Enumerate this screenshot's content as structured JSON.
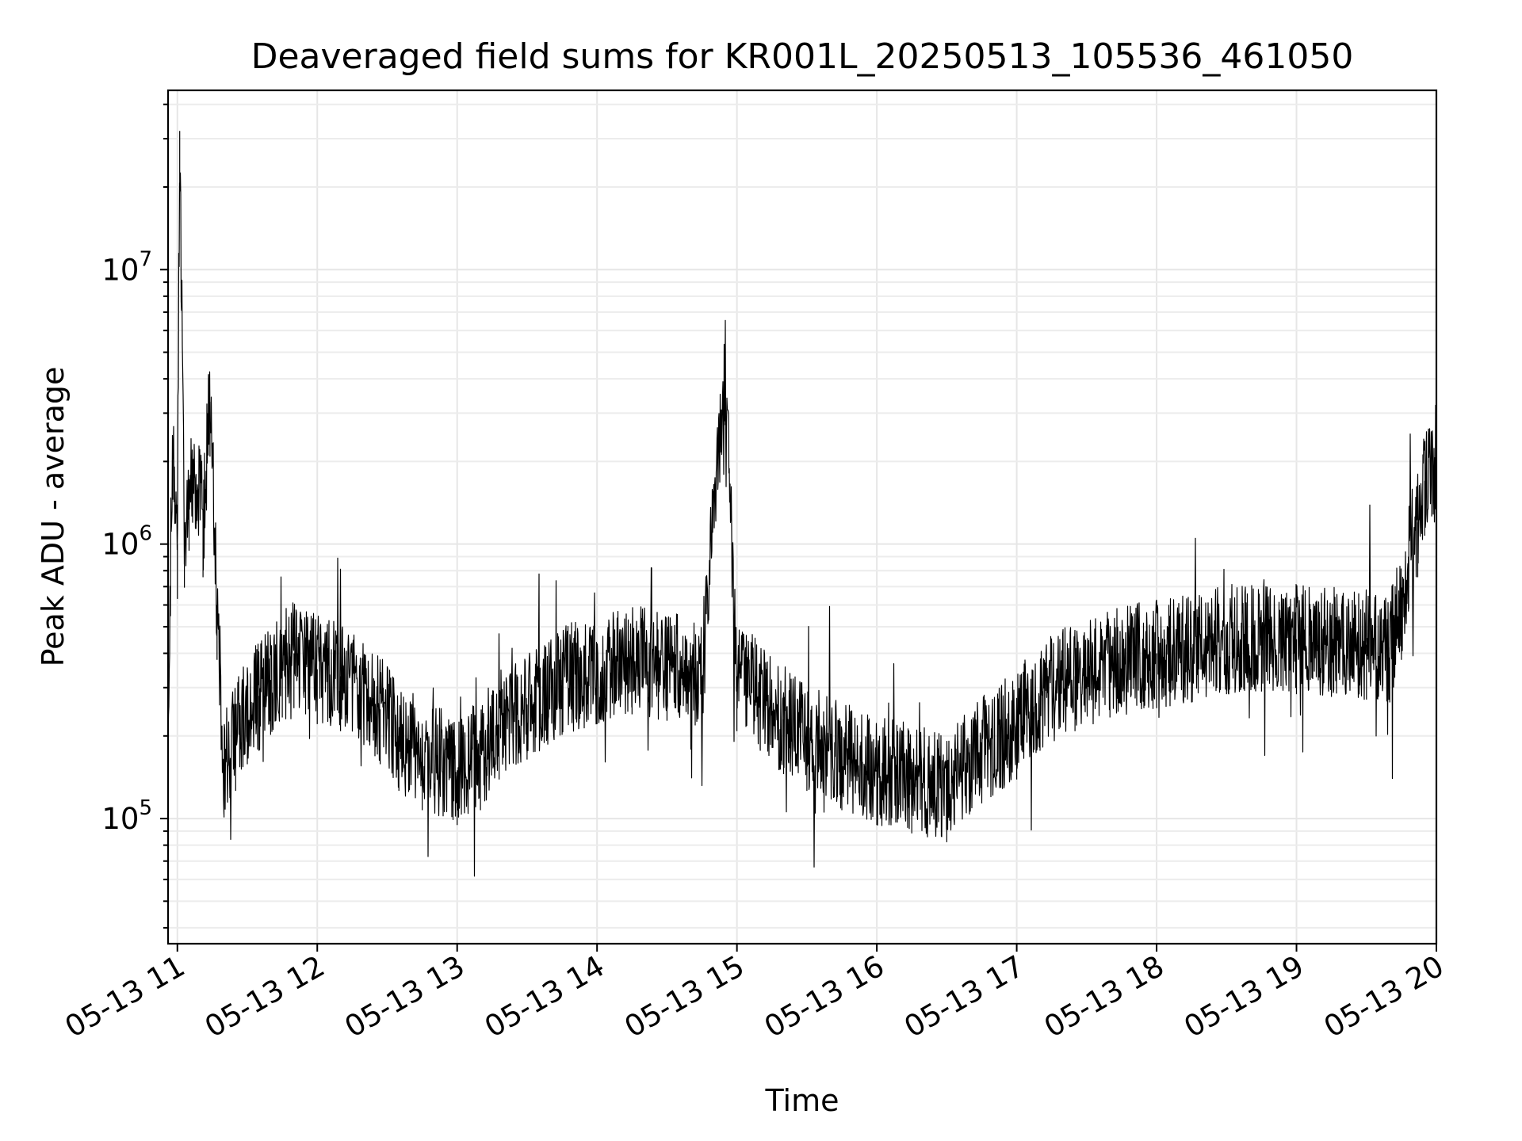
{
  "chart_data": {
    "type": "line",
    "title": "Deaveraged field sums for KR001L_20250513_105536_461050",
    "xlabel": "Time",
    "ylabel": "Peak ADU - average",
    "yscale": "log",
    "xlim": [
      "2025-05-13 10:56",
      "2025-05-13 20:00"
    ],
    "ylim": [
      35000,
      45000000
    ],
    "grid": true,
    "x_tick_labels": [
      "05-13 11",
      "05-13 12",
      "05-13 13",
      "05-13 14",
      "05-13 15",
      "05-13 16",
      "05-13 17",
      "05-13 18",
      "05-13 19",
      "05-13 20"
    ],
    "y_ticks": [
      {
        "base": "10",
        "exp": "5"
      },
      {
        "base": "10",
        "exp": "6"
      },
      {
        "base": "10",
        "exp": "7"
      }
    ],
    "series": [
      {
        "color": "#000000",
        "x": [
          "2025-05-13 10:56",
          "2025-05-13 10:58",
          "2025-05-13 11:00",
          "2025-05-13 11:01",
          "2025-05-13 11:03",
          "2025-05-13 11:05",
          "2025-05-13 11:08",
          "2025-05-13 11:11",
          "2025-05-13 11:14",
          "2025-05-13 11:17",
          "2025-05-13 11:20",
          "2025-05-13 11:25",
          "2025-05-13 11:30",
          "2025-05-13 11:35",
          "2025-05-13 11:40",
          "2025-05-13 11:45",
          "2025-05-13 11:50",
          "2025-05-13 11:55",
          "2025-05-13 12:00",
          "2025-05-13 12:10",
          "2025-05-13 12:20",
          "2025-05-13 12:27",
          "2025-05-13 12:35",
          "2025-05-13 12:45",
          "2025-05-13 13:00",
          "2025-05-13 13:10",
          "2025-05-13 13:18",
          "2025-05-13 13:30",
          "2025-05-13 13:45",
          "2025-05-13 14:00",
          "2025-05-13 14:15",
          "2025-05-13 14:30",
          "2025-05-13 14:45",
          "2025-05-13 14:55",
          "2025-05-13 15:00",
          "2025-05-13 15:10",
          "2025-05-13 15:20",
          "2025-05-13 15:30",
          "2025-05-13 15:45",
          "2025-05-13 16:00",
          "2025-05-13 16:15",
          "2025-05-13 16:30",
          "2025-05-13 16:45",
          "2025-05-13 17:00",
          "2025-05-13 17:10",
          "2025-05-13 17:25",
          "2025-05-13 17:40",
          "2025-05-13 18:00",
          "2025-05-13 18:15",
          "2025-05-13 18:30",
          "2025-05-13 18:45",
          "2025-05-13 19:00",
          "2025-05-13 19:15",
          "2025-05-13 19:30",
          "2025-05-13 19:40",
          "2025-05-13 19:45",
          "2025-05-13 19:48",
          "2025-05-13 19:52",
          "2025-05-13 19:55",
          "2025-05-13 19:58",
          "2025-05-13 20:00"
        ],
        "y": [
          300000,
          2300000,
          1000000,
          32000000,
          1100000,
          1500000,
          1800000,
          1200000,
          3300000,
          600000,
          160000,
          200000,
          250000,
          280000,
          320000,
          370000,
          400000,
          380000,
          350000,
          330000,
          300000,
          250000,
          200000,
          170000,
          150000,
          170000,
          220000,
          260000,
          320000,
          350000,
          380000,
          360000,
          330000,
          4300000,
          330000,
          280000,
          230000,
          200000,
          170000,
          150000,
          140000,
          130000,
          180000,
          220000,
          280000,
          330000,
          370000,
          400000,
          420000,
          450000,
          460000,
          450000,
          440000,
          430000,
          420000,
          600000,
          900000,
          1200000,
          1700000,
          2000000,
          1800000
        ]
      }
    ]
  }
}
